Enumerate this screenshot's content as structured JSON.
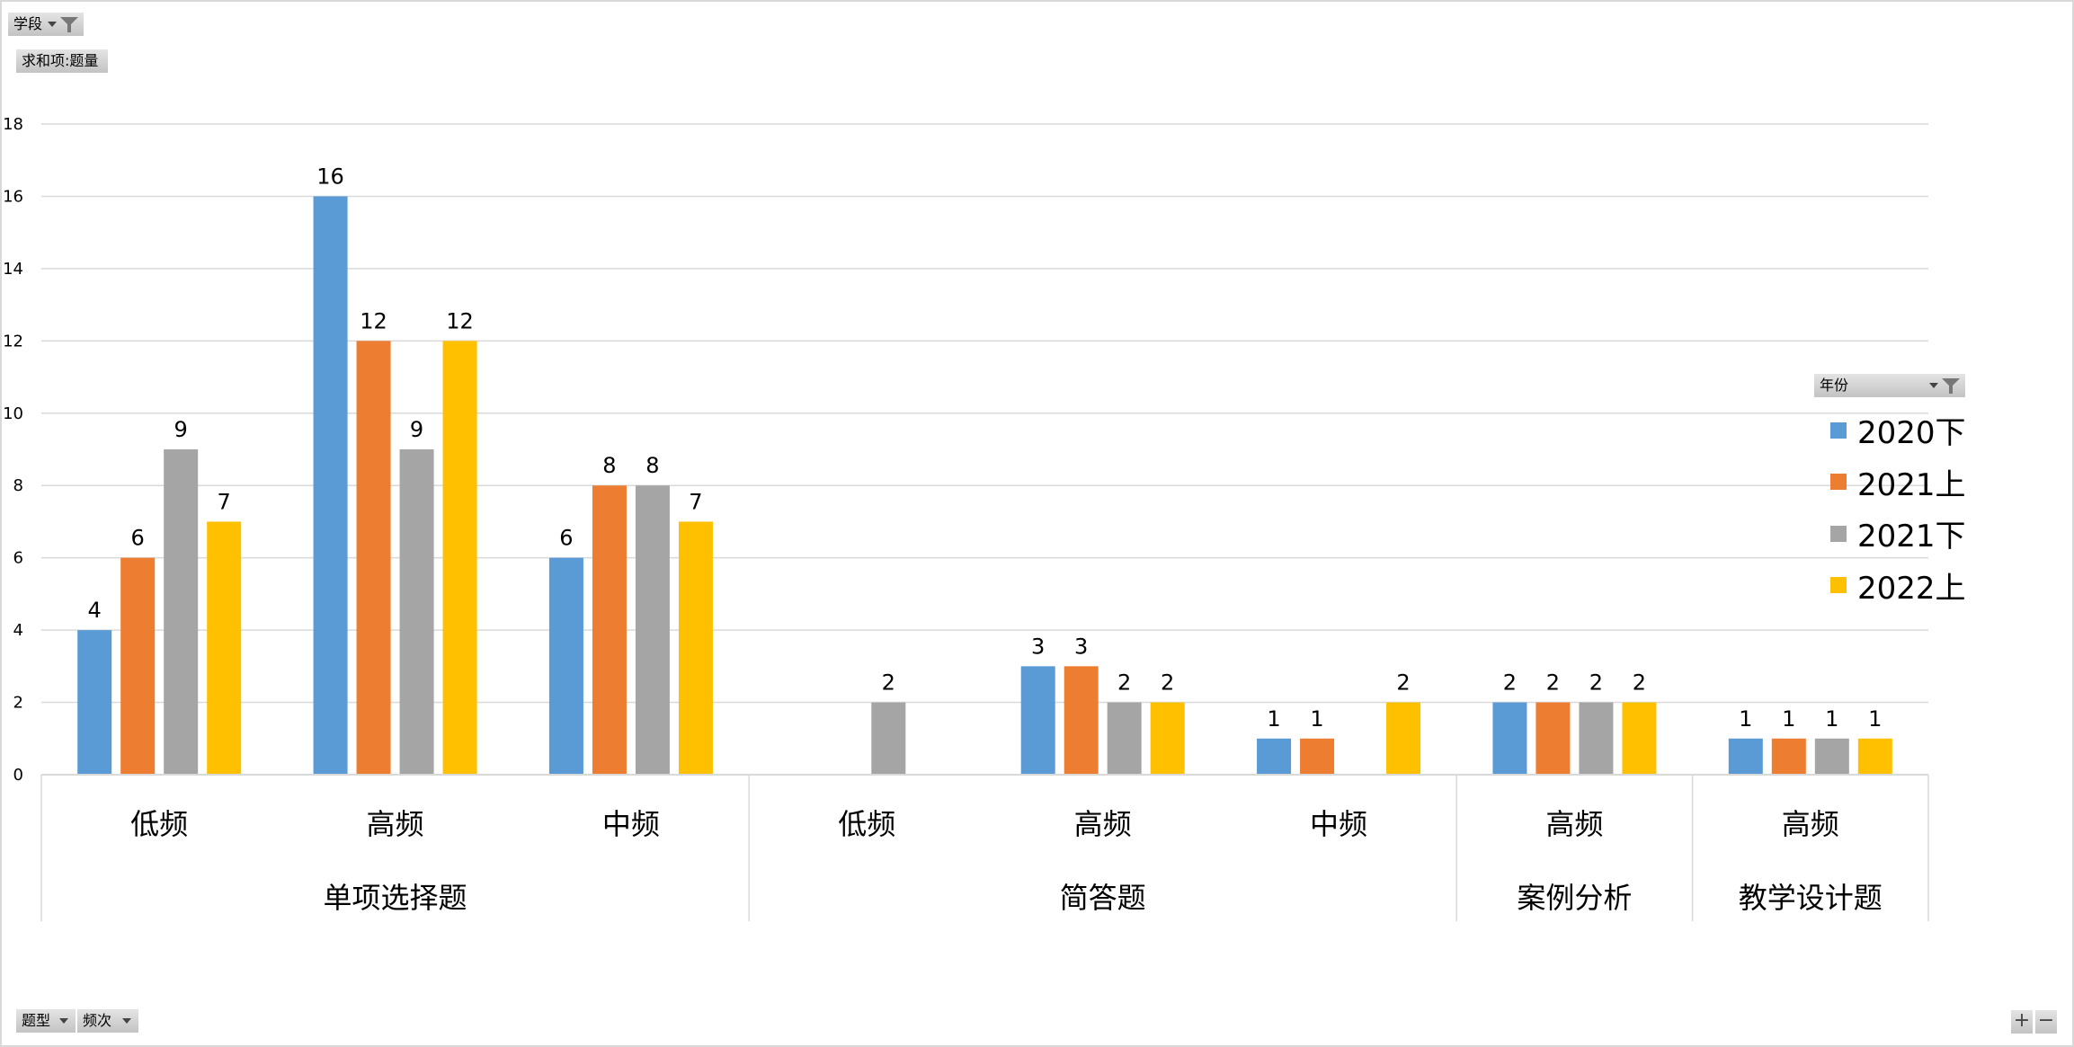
{
  "filters": {
    "stage": "学段",
    "value_field": "求和项:题量",
    "year": "年份",
    "type": "题型",
    "frequency": "频次"
  },
  "zoom": {
    "plus": "+",
    "minus": "−"
  },
  "chart_data": {
    "type": "bar",
    "ylim": [
      0,
      18
    ],
    "yticks": [
      "0",
      "2",
      "4",
      "6",
      "8",
      "10",
      "12",
      "14",
      "16",
      "18"
    ],
    "grid": true,
    "legend_placement": "right",
    "groups": [
      {
        "name": "单项选择题",
        "categories": [
          "低频",
          "高频",
          "中频"
        ]
      },
      {
        "name": "简答题",
        "categories": [
          "低频",
          "高频",
          "中频"
        ]
      },
      {
        "name": "案例分析",
        "categories": [
          "高频"
        ]
      },
      {
        "name": "教学设计题",
        "categories": [
          "高频"
        ]
      }
    ],
    "series": [
      {
        "name": "2020下",
        "color": "#5b9bd5",
        "values": [
          4,
          16,
          6,
          null,
          3,
          1,
          2,
          1
        ]
      },
      {
        "name": "2021上",
        "color": "#ed7d31",
        "values": [
          6,
          12,
          8,
          null,
          3,
          1,
          2,
          1
        ]
      },
      {
        "name": "2021下",
        "color": "#a5a5a5",
        "values": [
          9,
          9,
          8,
          2,
          2,
          null,
          2,
          1
        ]
      },
      {
        "name": "2022上",
        "color": "#ffc000",
        "values": [
          7,
          12,
          7,
          null,
          2,
          2,
          2,
          1
        ]
      }
    ]
  }
}
